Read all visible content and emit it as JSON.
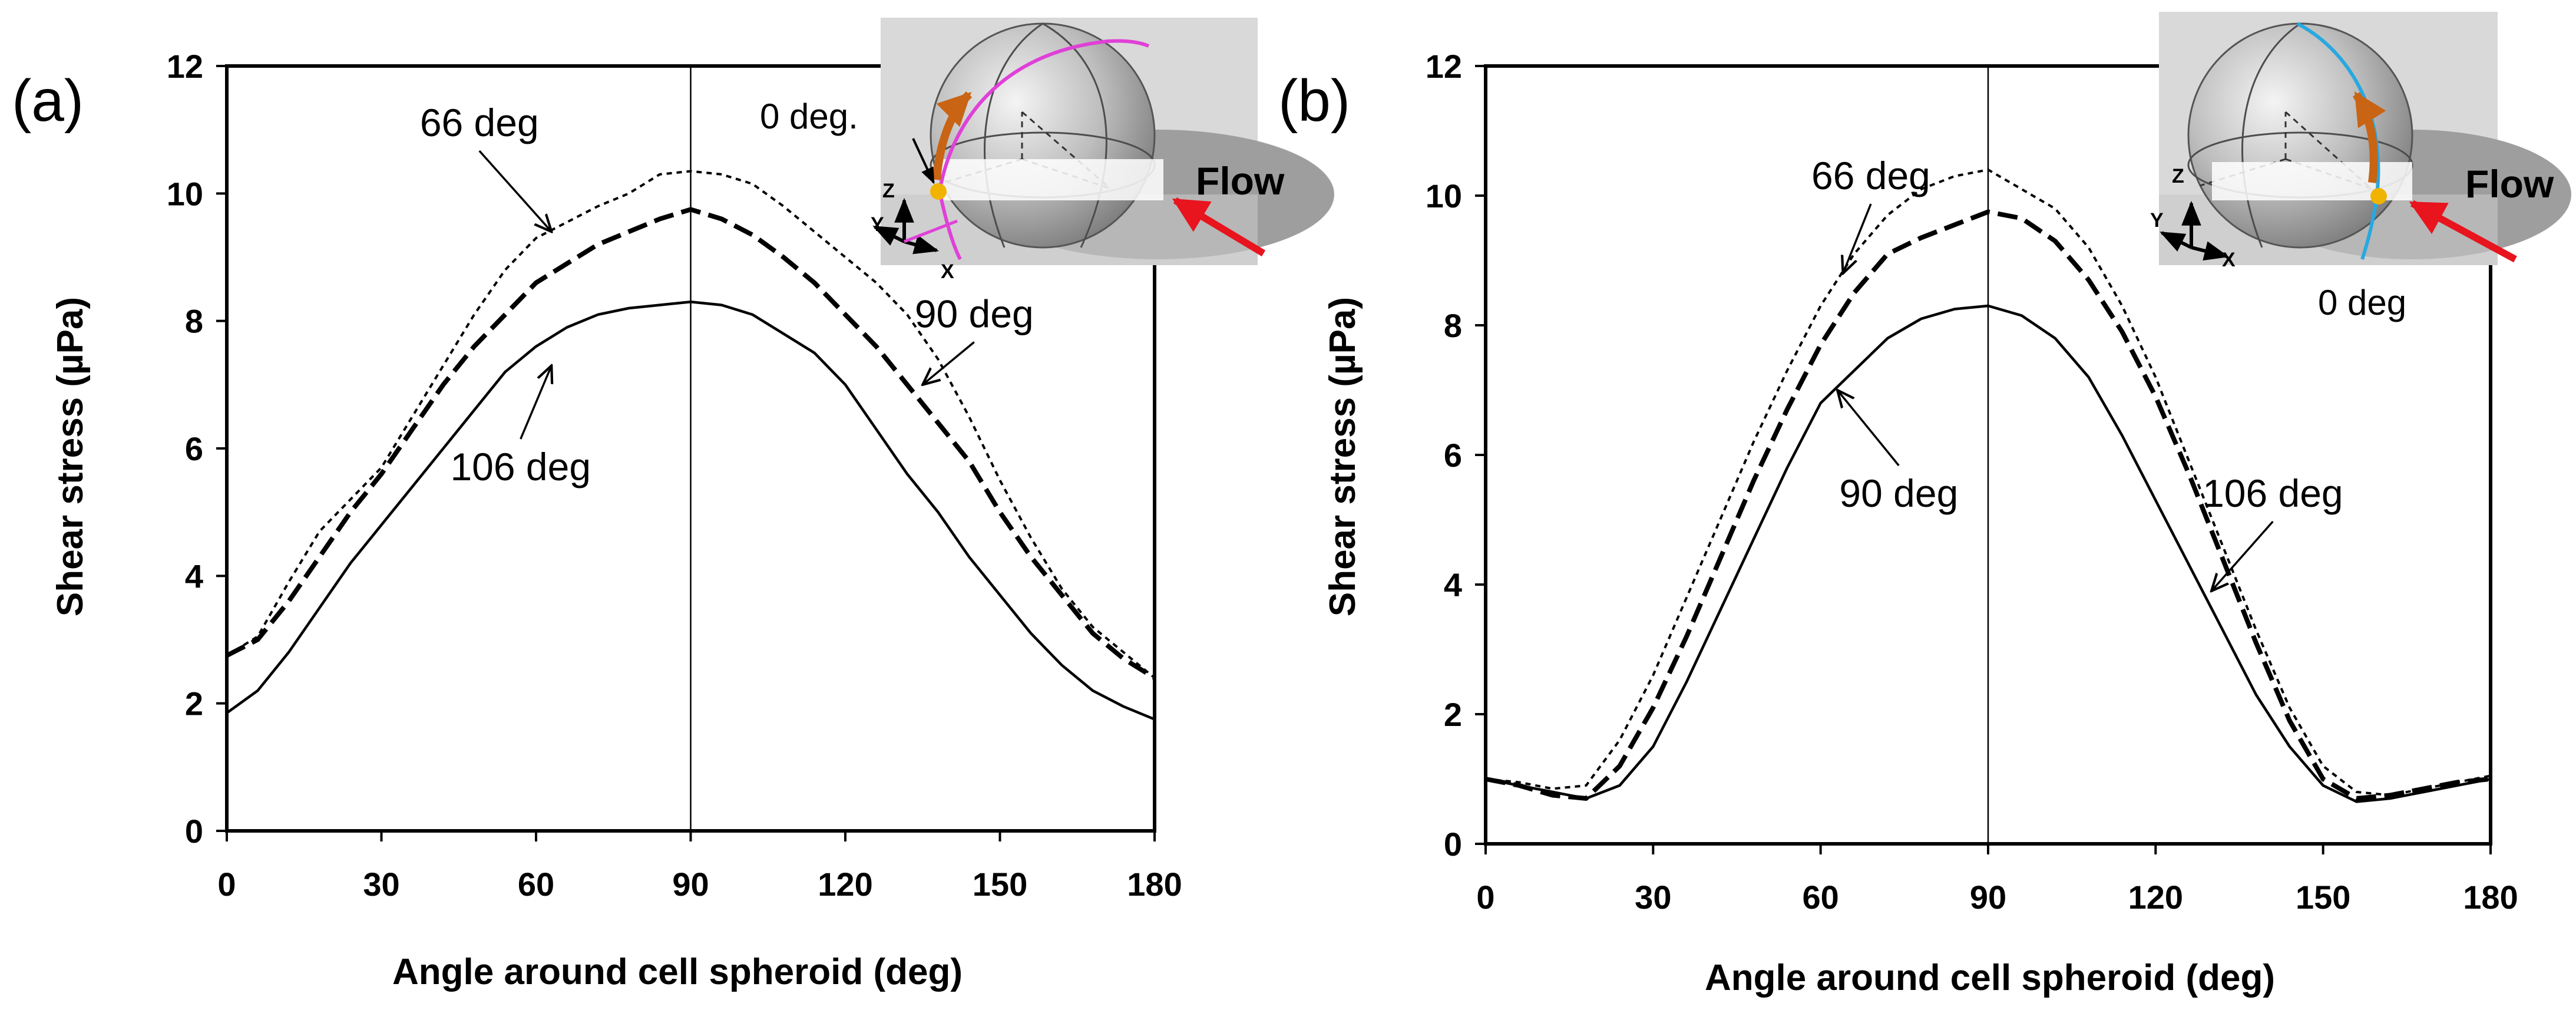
{
  "chart_data": [
    {
      "type": "line",
      "panel_label": "(a)",
      "xlabel": "Angle around cell spheroid (deg)",
      "ylabel": "Shear stress (µPa)",
      "xlim": [
        0,
        180
      ],
      "ylim": [
        0,
        12
      ],
      "xticks": [
        0,
        30,
        60,
        90,
        120,
        150,
        180
      ],
      "yticks": [
        0,
        2,
        4,
        6,
        8,
        10,
        12
      ],
      "grid": false,
      "reference_line_x": 90,
      "series": [
        {
          "name": "66 deg",
          "style": "dotted",
          "x": [
            0,
            6,
            12,
            18,
            24,
            30,
            36,
            42,
            48,
            54,
            60,
            66,
            72,
            78,
            84,
            90,
            96,
            102,
            108,
            114,
            120,
            126,
            132,
            138,
            144,
            150,
            156,
            162,
            168,
            174,
            180
          ],
          "y": [
            2.75,
            3.05,
            3.9,
            4.7,
            5.2,
            5.7,
            6.5,
            7.3,
            8.1,
            8.8,
            9.3,
            9.55,
            9.8,
            10.0,
            10.3,
            10.35,
            10.3,
            10.15,
            9.8,
            9.4,
            9.0,
            8.6,
            8.1,
            7.4,
            6.5,
            5.5,
            4.6,
            3.8,
            3.2,
            2.8,
            2.4
          ]
        },
        {
          "name": "90 deg",
          "style": "dashed",
          "x": [
            0,
            6,
            12,
            18,
            24,
            30,
            36,
            42,
            48,
            54,
            60,
            66,
            72,
            78,
            84,
            90,
            96,
            102,
            108,
            114,
            120,
            126,
            132,
            138,
            144,
            150,
            156,
            162,
            168,
            174,
            180
          ],
          "y": [
            2.75,
            3.0,
            3.6,
            4.3,
            5.0,
            5.6,
            6.3,
            7.0,
            7.6,
            8.1,
            8.6,
            8.9,
            9.2,
            9.4,
            9.6,
            9.75,
            9.6,
            9.35,
            9.0,
            8.6,
            8.1,
            7.6,
            7.0,
            6.4,
            5.8,
            5.0,
            4.3,
            3.7,
            3.1,
            2.7,
            2.4
          ]
        },
        {
          "name": "106 deg",
          "style": "solid",
          "x": [
            0,
            6,
            12,
            18,
            24,
            30,
            36,
            42,
            48,
            54,
            60,
            66,
            72,
            78,
            84,
            90,
            96,
            102,
            108,
            114,
            120,
            126,
            132,
            138,
            144,
            150,
            156,
            162,
            168,
            174,
            180
          ],
          "y": [
            1.85,
            2.2,
            2.8,
            3.5,
            4.2,
            4.8,
            5.4,
            6.0,
            6.6,
            7.2,
            7.6,
            7.9,
            8.1,
            8.2,
            8.25,
            8.3,
            8.25,
            8.1,
            7.8,
            7.5,
            7.0,
            6.3,
            5.6,
            5.0,
            4.3,
            3.7,
            3.1,
            2.6,
            2.2,
            1.95,
            1.75
          ]
        }
      ],
      "annotations": [
        {
          "text": "66 deg",
          "x": 49,
          "y": 10.9,
          "arrow_to": [
            63,
            9.4
          ]
        },
        {
          "text": "90 deg",
          "x": 145,
          "y": 7.9,
          "arrow_to": [
            135,
            7.0
          ]
        },
        {
          "text": "106 deg",
          "x": 57,
          "y": 5.5,
          "arrow_to": [
            63,
            7.3
          ]
        }
      ],
      "inset": {
        "point_label": "0 deg.",
        "flow_label": "Flow",
        "axes": [
          "Z",
          "Y",
          "X"
        ],
        "path_color": "#e040d8",
        "arrow_color": "#c86414",
        "flow_arrow_color": "#e8141e",
        "point_color": "#f0b400"
      }
    },
    {
      "type": "line",
      "panel_label": "(b)",
      "xlabel": "Angle around cell spheroid (deg)",
      "ylabel": "Shear stress (µPa)",
      "xlim": [
        0,
        180
      ],
      "ylim": [
        0,
        12
      ],
      "xticks": [
        0,
        30,
        60,
        90,
        120,
        150,
        180
      ],
      "yticks": [
        0,
        2,
        4,
        6,
        8,
        10,
        12
      ],
      "grid": false,
      "reference_line_x": 90,
      "series": [
        {
          "name": "66 deg",
          "style": "dotted",
          "x": [
            0,
            6,
            12,
            18,
            24,
            30,
            36,
            42,
            48,
            54,
            60,
            66,
            72,
            78,
            84,
            90,
            96,
            102,
            108,
            114,
            120,
            126,
            132,
            138,
            144,
            150,
            156,
            162,
            168,
            174,
            180
          ],
          "y": [
            1.0,
            0.95,
            0.85,
            0.9,
            1.6,
            2.6,
            3.8,
            5.0,
            6.2,
            7.3,
            8.3,
            9.1,
            9.7,
            10.1,
            10.3,
            10.4,
            10.1,
            9.8,
            9.2,
            8.3,
            7.2,
            5.9,
            4.6,
            3.3,
            2.1,
            1.2,
            0.8,
            0.75,
            0.85,
            0.95,
            1.05
          ]
        },
        {
          "name": "90 deg",
          "style": "dashed",
          "x": [
            0,
            6,
            12,
            18,
            24,
            30,
            36,
            42,
            48,
            54,
            60,
            66,
            72,
            78,
            84,
            90,
            96,
            102,
            108,
            114,
            120,
            126,
            132,
            138,
            144,
            150,
            156,
            162,
            168,
            174,
            180
          ],
          "y": [
            1.0,
            0.9,
            0.75,
            0.7,
            1.2,
            2.1,
            3.2,
            4.4,
            5.6,
            6.7,
            7.7,
            8.5,
            9.1,
            9.35,
            9.55,
            9.75,
            9.65,
            9.3,
            8.7,
            7.9,
            6.9,
            5.7,
            4.4,
            3.1,
            1.9,
            1.0,
            0.7,
            0.75,
            0.85,
            0.95,
            1.0
          ]
        },
        {
          "name": "106 deg",
          "style": "solid",
          "x": [
            0,
            6,
            12,
            18,
            24,
            30,
            36,
            42,
            48,
            54,
            60,
            66,
            72,
            78,
            84,
            90,
            96,
            102,
            108,
            114,
            120,
            126,
            132,
            138,
            144,
            150,
            156,
            162,
            168,
            174,
            180
          ],
          "y": [
            1.0,
            0.9,
            0.8,
            0.7,
            0.9,
            1.5,
            2.5,
            3.6,
            4.7,
            5.8,
            6.8,
            7.3,
            7.8,
            8.1,
            8.25,
            8.3,
            8.15,
            7.8,
            7.2,
            6.3,
            5.3,
            4.3,
            3.3,
            2.3,
            1.5,
            0.9,
            0.65,
            0.7,
            0.8,
            0.9,
            1.0
          ]
        }
      ],
      "annotations": [
        {
          "text": "66 deg",
          "x": 69,
          "y": 10.1,
          "arrow_to": [
            64,
            8.8
          ]
        },
        {
          "text": "90 deg",
          "x": 74,
          "y": 5.2,
          "arrow_to": [
            63,
            7.0
          ]
        },
        {
          "text": "106 deg",
          "x": 141,
          "y": 5.2,
          "arrow_to": [
            130,
            3.9
          ]
        }
      ],
      "inset": {
        "point_label": "0 deg",
        "flow_label": "Flow",
        "axes": [
          "Z",
          "Y",
          "X"
        ],
        "path_color": "#28a8e0",
        "arrow_color": "#c86414",
        "flow_arrow_color": "#e8141e",
        "point_color": "#f0b400"
      }
    }
  ]
}
